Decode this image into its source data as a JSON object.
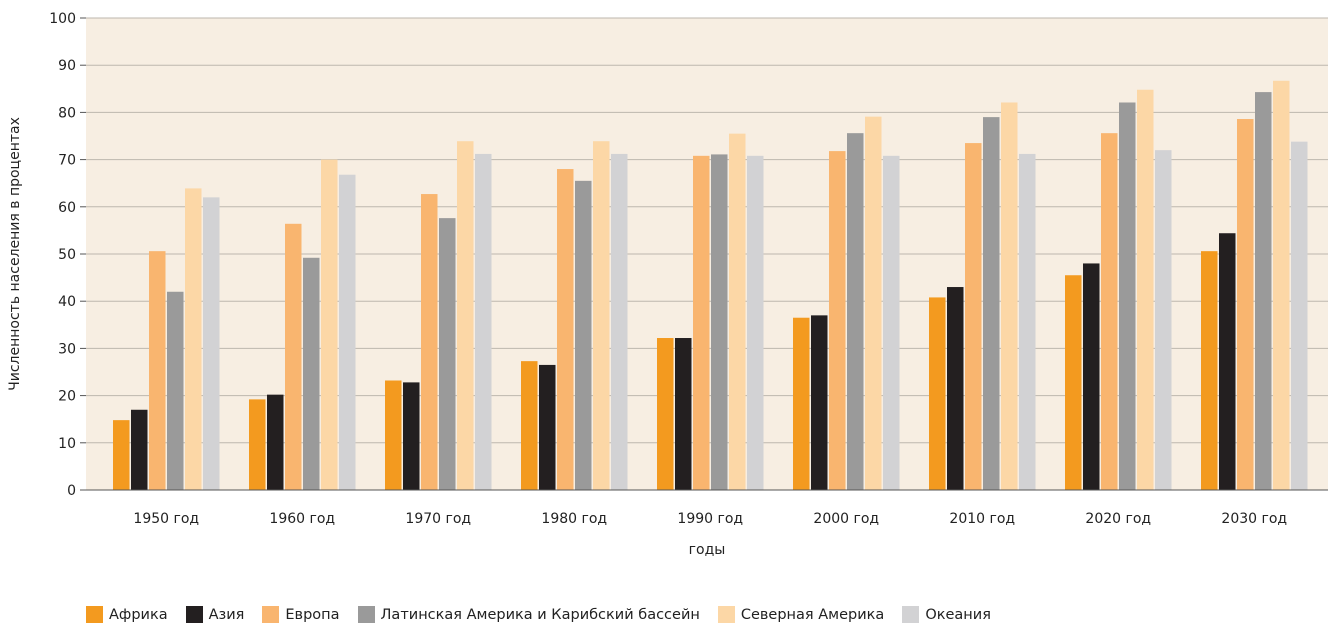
{
  "chart_data": {
    "type": "bar",
    "title": "",
    "xlabel": "годы",
    "ylabel": "Численность населения в процентах",
    "ylim": [
      0,
      100
    ],
    "yticks": [
      0,
      10,
      20,
      30,
      40,
      50,
      60,
      70,
      80,
      90,
      100
    ],
    "grid": "horizontal",
    "plot_background": "#f7eee2",
    "legend_position": "bottom",
    "categories": [
      "1950 год",
      "1960 год",
      "1970 год",
      "1980 год",
      "1990 год",
      "2000 год",
      "2010 год",
      "2020 год",
      "2030 год"
    ],
    "series": [
      {
        "name": "Африка",
        "color": "#f39a1f",
        "values": [
          14.8,
          19.2,
          23.2,
          27.3,
          32.2,
          36.5,
          40.8,
          45.5,
          50.6
        ]
      },
      {
        "name": "Азия",
        "color": "#231f20",
        "values": [
          17.0,
          20.2,
          22.8,
          26.5,
          32.2,
          37.0,
          43.0,
          48.0,
          54.4
        ]
      },
      {
        "name": "Европа",
        "color": "#f9b56f",
        "values": [
          50.6,
          56.4,
          62.7,
          68.0,
          70.8,
          71.8,
          73.5,
          75.6,
          78.6
        ]
      },
      {
        "name": "Латинская Америка и Карибский бассейн",
        "color": "#9a9a9a",
        "values": [
          42.0,
          49.2,
          57.6,
          65.5,
          71.1,
          75.6,
          79.0,
          82.1,
          84.3
        ]
      },
      {
        "name": "Северная Америка",
        "color": "#fcd7a6",
        "values": [
          63.9,
          70.0,
          73.9,
          73.9,
          75.5,
          79.1,
          82.1,
          84.8,
          86.7
        ]
      },
      {
        "name": "Океания",
        "color": "#d2d2d4",
        "values": [
          62.0,
          66.8,
          71.2,
          71.2,
          70.8,
          70.8,
          71.2,
          72.0,
          73.8
        ]
      }
    ]
  }
}
